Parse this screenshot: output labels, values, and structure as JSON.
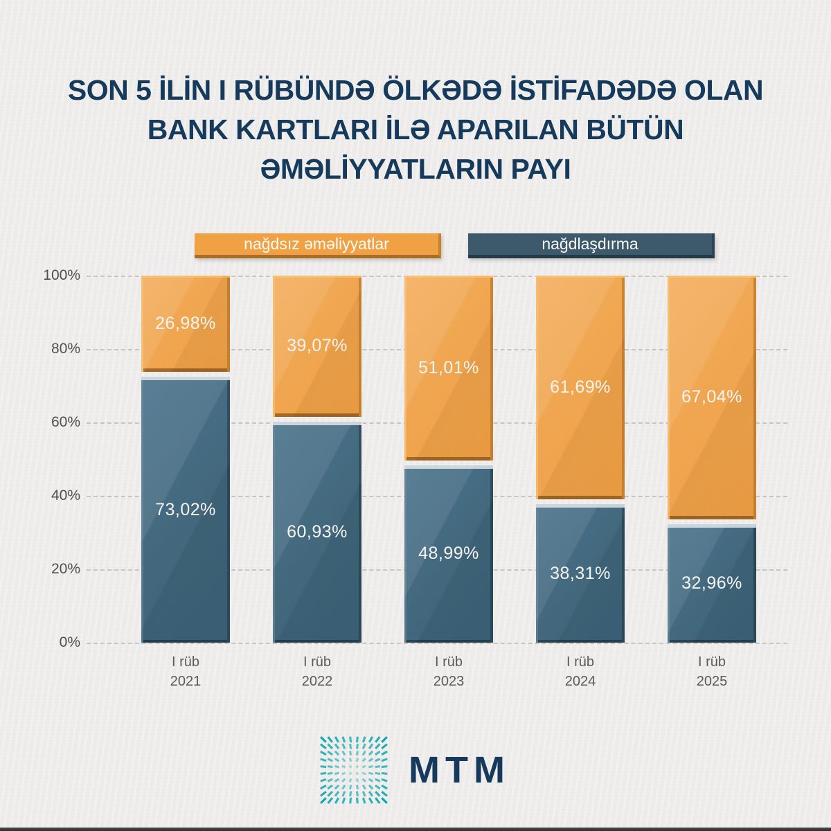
{
  "title": {
    "lines": [
      "SON 5 İLİN I RÜBÜNDƏ ÖLKƏDƏ İSTİFADƏDƏ OLAN",
      "BANK KARTLARI İLƏ APARILAN BÜTÜN",
      "ƏMƏLİYYATLARIN PAYI"
    ]
  },
  "legend": {
    "position": "top",
    "items": [
      {
        "label": "nağdsız əməliyyatlar",
        "color": "#EFA144"
      },
      {
        "label": "nağdlaşdırma",
        "color": "#3D5A6C"
      }
    ]
  },
  "chart_data": {
    "type": "bar",
    "stacked": true,
    "categories": [
      {
        "line1": "I rüb",
        "line2": "2021"
      },
      {
        "line1": "I rüb",
        "line2": "2022"
      },
      {
        "line1": "I rüb",
        "line2": "2023"
      },
      {
        "line1": "I rüb",
        "line2": "2024"
      },
      {
        "line1": "I rüb",
        "line2": "2025"
      }
    ],
    "series": [
      {
        "name": "nağdsız əməliyyatlar",
        "color": "#F0A34B",
        "values": [
          26.98,
          39.07,
          51.01,
          61.69,
          67.04
        ],
        "labels": [
          "26,98%",
          "39,07%",
          "51,01%",
          "61,69%",
          "67,04%"
        ]
      },
      {
        "name": "nağdlaşdırma",
        "color": "#3F657A",
        "values": [
          73.02,
          60.93,
          48.99,
          38.31,
          32.96
        ],
        "labels": [
          "73,02%",
          "60,93%",
          "48,99%",
          "38,31%",
          "32,96%"
        ]
      }
    ],
    "yticks": [
      "0%",
      "20%",
      "40%",
      "60%",
      "80%",
      "100%"
    ],
    "ylim": [
      0,
      100
    ],
    "grid": "dashed-horizontal"
  },
  "logo": {
    "text": "MTM",
    "mark": "radial-dash-burst-icon",
    "teal": "#0CA6B0",
    "navy": "#17395C"
  },
  "colors": {
    "background": "#EFEEEC",
    "title": "#153A5C",
    "axis_label": "#4F4F4D",
    "bar_label": "#F6F5F2",
    "gridline": "#C6C5C2",
    "bottom_bar": "#3D3D3D"
  }
}
